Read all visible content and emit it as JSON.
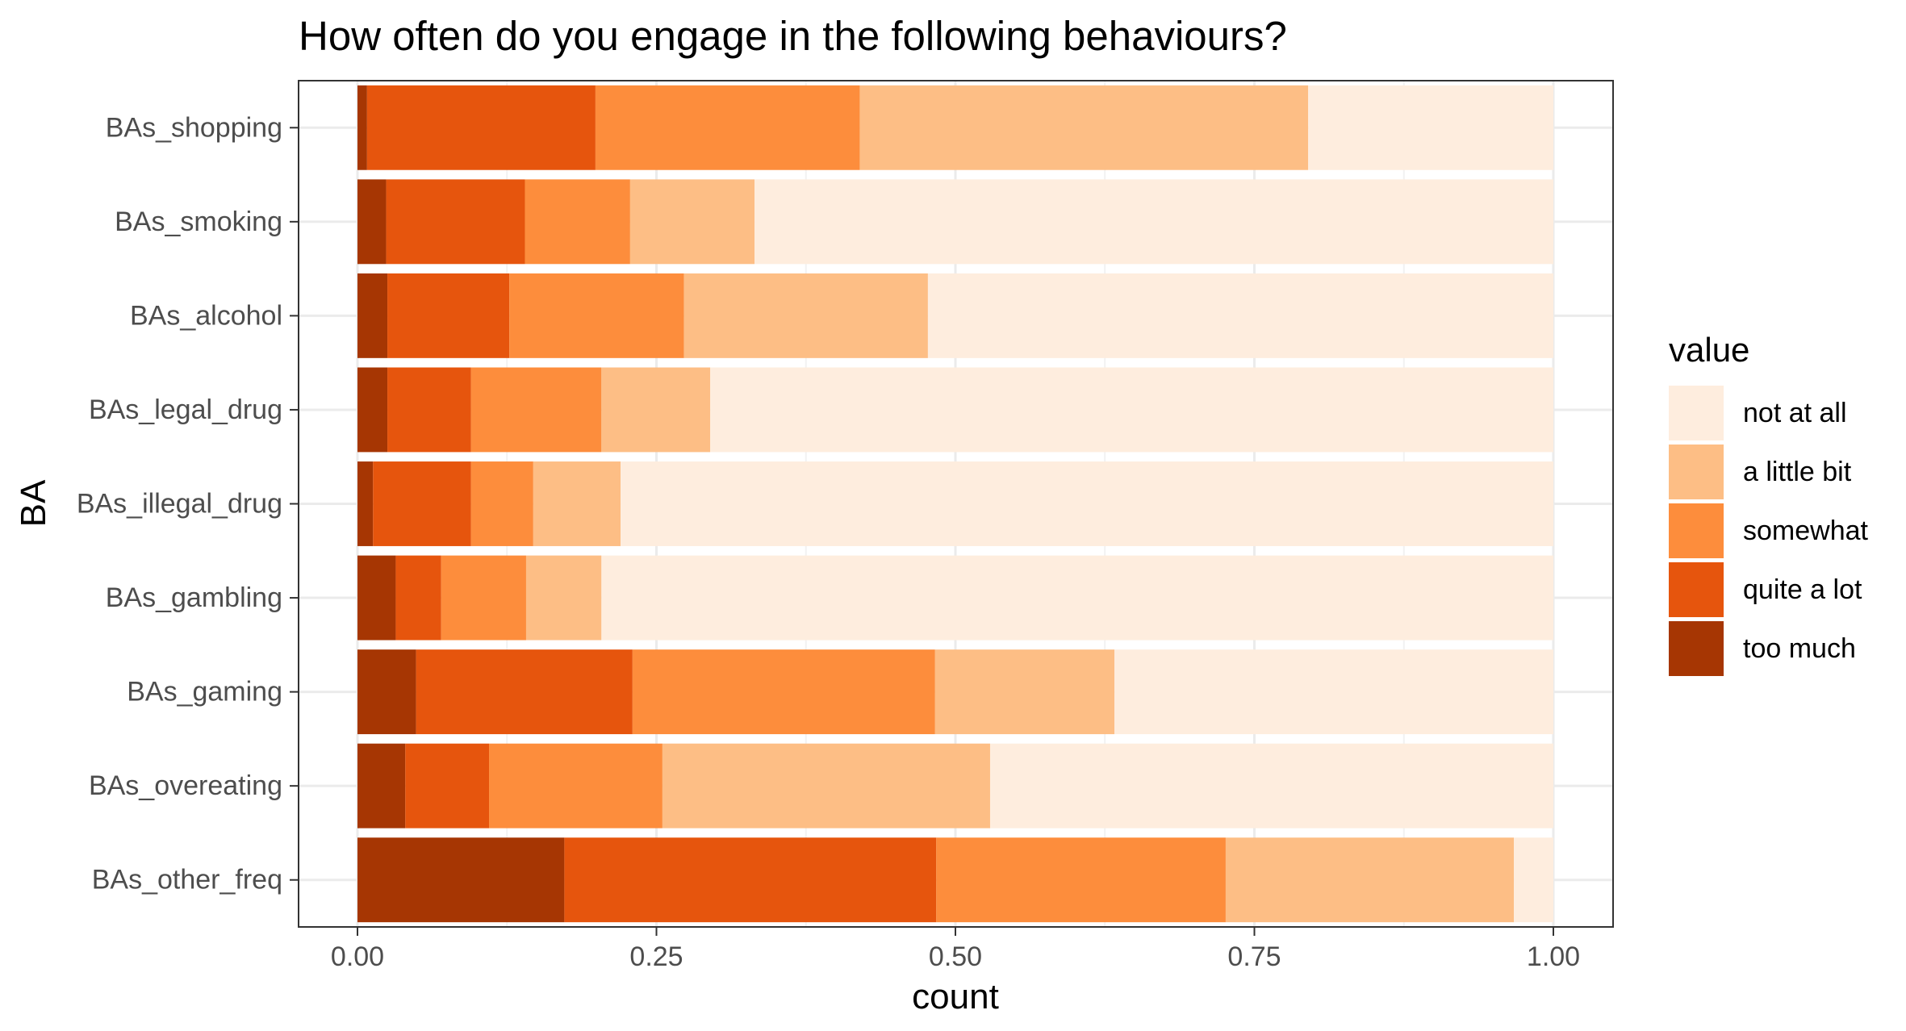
{
  "chart_data": {
    "type": "bar",
    "orientation": "horizontal",
    "stacked": true,
    "title": "How often do you engage in the following behaviours?",
    "xlabel": "count",
    "ylabel": "BA",
    "xlim": [
      0,
      1
    ],
    "x_ticks": [
      "0.00",
      "0.25",
      "0.50",
      "0.75",
      "1.00"
    ],
    "grid": true,
    "legend_position": "right",
    "legend_title": "value",
    "categories": [
      "BAs_shopping",
      "BAs_smoking",
      "BAs_alcohol",
      "BAs_legal_drug",
      "BAs_illegal_drug",
      "BAs_gambling",
      "BAs_gaming",
      "BAs_overeating",
      "BAs_other_freq"
    ],
    "series": [
      {
        "name": "too much",
        "color": "#A63603",
        "values": [
          0.008,
          0.024,
          0.025,
          0.025,
          0.013,
          0.032,
          0.049,
          0.04,
          0.173
        ]
      },
      {
        "name": "quite a lot",
        "color": "#E6550D",
        "values": [
          0.191,
          0.116,
          0.102,
          0.07,
          0.082,
          0.038,
          0.181,
          0.07,
          0.311
        ]
      },
      {
        "name": "somewhat",
        "color": "#FD8D3C",
        "values": [
          0.221,
          0.088,
          0.146,
          0.109,
          0.052,
          0.071,
          0.253,
          0.145,
          0.242
        ]
      },
      {
        "name": "a little bit",
        "color": "#FDBE85",
        "values": [
          0.375,
          0.104,
          0.204,
          0.091,
          0.073,
          0.063,
          0.15,
          0.274,
          0.241
        ]
      },
      {
        "name": "not at all",
        "color": "#FEEDDE",
        "values": [
          0.205,
          0.668,
          0.523,
          0.705,
          0.78,
          0.796,
          0.367,
          0.471,
          0.033
        ]
      }
    ]
  }
}
